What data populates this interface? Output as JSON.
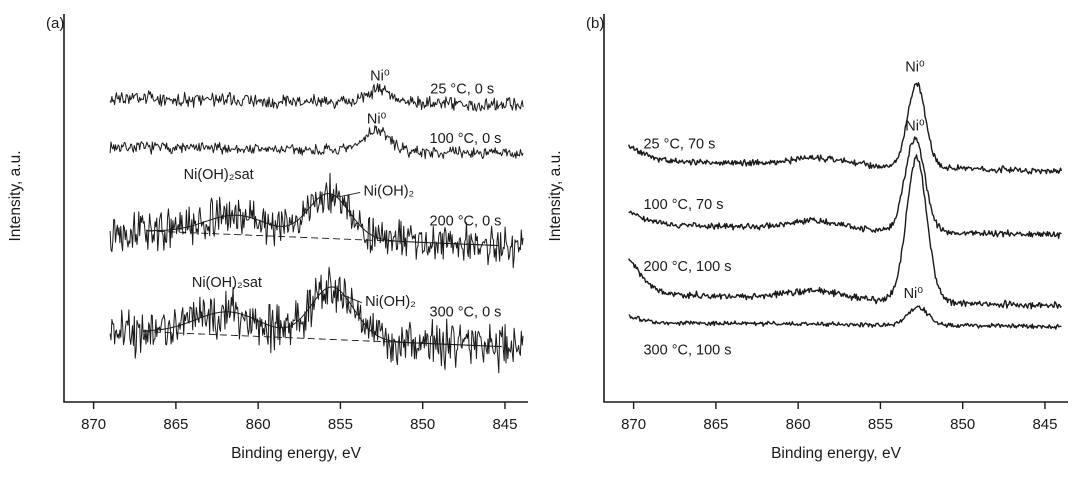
{
  "figure": {
    "background": "#ffffff",
    "line_color": "#1a1a1a"
  },
  "chart_data": [
    {
      "type": "line",
      "panel_label": "(a)",
      "xlabel": "Binding energy, eV",
      "ylabel": "Intensity, a.u.",
      "x_axis_reversed": true,
      "grid": false,
      "x_domain": [
        871.8,
        843.6
      ],
      "x_ticks": [
        870,
        865,
        860,
        855,
        850,
        845
      ],
      "x_data_range": [
        869.0,
        843.9
      ],
      "stroke_width": 1.0,
      "series": [
        {
          "name": "25 °C, 0 s",
          "offset": 0.225,
          "tilt": 0.018,
          "noise": 0.022,
          "seed": 3,
          "peaks": [
            {
              "center": 852.6,
              "sigma": 0.7,
              "amp": 0.035,
              "label": "Ni⁰"
            }
          ]
        },
        {
          "name": "100 °C, 0 s",
          "offset": 0.35,
          "tilt": 0.02,
          "noise": 0.018,
          "seed": 7,
          "peaks": [
            {
              "center": 852.8,
              "sigma": 0.75,
              "amp": 0.055,
              "label": "Ni⁰"
            }
          ]
        },
        {
          "name": "200 °C, 0 s",
          "offset": 0.575,
          "tilt": 0.05,
          "noise": 0.06,
          "seed": 13,
          "peaks": [
            {
              "center": 855.7,
              "sigma": 1.25,
              "amp": 0.115,
              "label": "Ni(OH)₂"
            },
            {
              "center": 861.3,
              "sigma": 1.9,
              "amp": 0.05,
              "label": "Ni(OH)₂sat"
            }
          ],
          "fit": {
            "range": [
              866.8,
              845.4
            ],
            "baseline": true
          }
        },
        {
          "name": "300 °C, 0 s",
          "offset": 0.835,
          "tilt": 0.05,
          "noise": 0.075,
          "seed": 21,
          "peaks": [
            {
              "center": 855.5,
              "sigma": 1.3,
              "amp": 0.135,
              "label": "Ni(OH)₂"
            },
            {
              "center": 861.8,
              "sigma": 2.0,
              "amp": 0.06,
              "label": "Ni(OH)₂sat"
            }
          ],
          "fit": {
            "range": [
              867.0,
              845.2
            ],
            "baseline": true
          }
        }
      ],
      "labels": [
        {
          "series": 0,
          "ev": 847.6,
          "yf": 0.205,
          "anchor": "middle"
        },
        {
          "series": 1,
          "ev": 847.4,
          "yf": 0.333,
          "anchor": "middle"
        },
        {
          "series": 2,
          "ev": 847.4,
          "yf": 0.545,
          "anchor": "middle"
        },
        {
          "series": 3,
          "ev": 847.4,
          "yf": 0.78,
          "anchor": "middle"
        },
        {
          "text": "Ni⁰",
          "ev": 852.6,
          "yf": 0.172,
          "anchor": "middle",
          "leader": [
            [
              852.6,
              0.18
            ],
            [
              852.6,
              0.196
            ]
          ]
        },
        {
          "text": "Ni⁰",
          "ev": 852.8,
          "yf": 0.282,
          "anchor": "middle",
          "leader": [
            [
              852.8,
              0.289
            ],
            [
              852.8,
              0.297
            ]
          ]
        },
        {
          "text": "Ni(OH)₂sat",
          "ev": 862.4,
          "yf": 0.425,
          "anchor": "middle"
        },
        {
          "text": "Ni(OH)₂",
          "ev": 853.6,
          "yf": 0.468,
          "anchor": "start",
          "leader": [
            [
              853.8,
              0.46
            ],
            [
              855.2,
              0.472
            ]
          ]
        },
        {
          "text": "Ni(OH)₂sat",
          "ev": 861.9,
          "yf": 0.703,
          "anchor": "middle"
        },
        {
          "text": "Ni(OH)₂",
          "ev": 853.5,
          "yf": 0.752,
          "anchor": "start",
          "leader": [
            [
              853.7,
              0.744
            ],
            [
              855.0,
              0.722
            ]
          ]
        }
      ]
    },
    {
      "type": "line",
      "panel_label": "(b)",
      "xlabel": "Binding energy, eV",
      "ylabel": "Intensity, a.u.",
      "x_axis_reversed": true,
      "grid": false,
      "x_domain": [
        871.8,
        843.6
      ],
      "x_ticks": [
        870,
        865,
        860,
        855,
        850,
        845
      ],
      "x_data_range": [
        870.3,
        844.0
      ],
      "stroke_width": 1.4,
      "series": [
        {
          "name": "25 °C, 70 s",
          "offset": 0.39,
          "tilt": 0.03,
          "noise": 0.01,
          "seed": 5,
          "peaks": [
            {
              "center": 852.8,
              "sigma": 0.55,
              "amp": 0.215,
              "label": "Ni⁰"
            },
            {
              "center": 858.8,
              "sigma": 1.6,
              "amp": 0.018
            },
            {
              "center": 870.9,
              "sigma": 1.2,
              "amp": 0.04
            }
          ]
        },
        {
          "name": "100 °C, 70 s",
          "offset": 0.555,
          "tilt": 0.03,
          "noise": 0.01,
          "seed": 9,
          "peaks": [
            {
              "center": 852.9,
              "sigma": 0.6,
              "amp": 0.24,
              "label": "Ni⁰"
            },
            {
              "center": 859.0,
              "sigma": 1.6,
              "amp": 0.02
            },
            {
              "center": 870.9,
              "sigma": 1.2,
              "amp": 0.035
            }
          ]
        },
        {
          "name": "200 °C, 100 s",
          "offset": 0.735,
          "tilt": 0.035,
          "noise": 0.011,
          "seed": 17,
          "peaks": [
            {
              "center": 852.8,
              "sigma": 0.62,
              "amp": 0.37,
              "label": "Ni⁰"
            },
            {
              "center": 859.0,
              "sigma": 1.5,
              "amp": 0.02
            },
            {
              "center": 870.9,
              "sigma": 1.1,
              "amp": 0.105
            }
          ]
        },
        {
          "name": "300 °C, 100 s",
          "offset": 0.8,
          "tilt": 0.012,
          "noise": 0.007,
          "seed": 25,
          "peaks": [
            {
              "center": 852.7,
              "sigma": 0.6,
              "amp": 0.046,
              "label": "Ni⁰"
            },
            {
              "center": 870.9,
              "sigma": 1.0,
              "amp": 0.02
            }
          ]
        }
      ],
      "labels": [
        {
          "series": 0,
          "ev": 869.4,
          "yf": 0.347,
          "anchor": "start"
        },
        {
          "series": 1,
          "ev": 869.4,
          "yf": 0.503,
          "anchor": "start"
        },
        {
          "series": 2,
          "ev": 869.4,
          "yf": 0.663,
          "anchor": "start"
        },
        {
          "series": 3,
          "ev": 869.4,
          "yf": 0.878,
          "anchor": "start"
        },
        {
          "text": "Ni⁰",
          "ev": 852.9,
          "yf": 0.148,
          "anchor": "middle"
        },
        {
          "text": "Ni⁰",
          "ev": 852.9,
          "yf": 0.3,
          "anchor": "middle"
        },
        {
          "text": "Ni⁰",
          "ev": 853.0,
          "yf": 0.732,
          "anchor": "middle"
        }
      ]
    }
  ]
}
